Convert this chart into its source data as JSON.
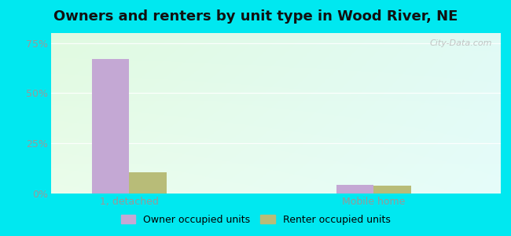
{
  "title": "Owners and renters by unit type in Wood River, NE",
  "categories": [
    "1, detached",
    "Mobile home"
  ],
  "owner_values": [
    67.0,
    4.5
  ],
  "renter_values": [
    10.5,
    4.0
  ],
  "owner_color": "#c4a8d4",
  "renter_color": "#b8bc78",
  "ylim": [
    0,
    80
  ],
  "yticks": [
    0,
    25,
    50,
    75
  ],
  "yticklabels": [
    "0%",
    "25%",
    "50%",
    "75%"
  ],
  "bar_width": 0.38,
  "group_positions": [
    1.0,
    3.5
  ],
  "xlim": [
    0.2,
    4.8
  ],
  "legend_owner": "Owner occupied units",
  "legend_renter": "Renter occupied units",
  "watermark": "City-Data.com",
  "title_fontsize": 13,
  "tick_fontsize": 9,
  "legend_fontsize": 9,
  "cyan_bg": "#00e8f0",
  "plot_bg_topleft": [
    0.88,
    0.98,
    0.88
  ],
  "plot_bg_topright": [
    0.88,
    0.98,
    0.96
  ],
  "plot_bg_botleft": [
    0.92,
    0.99,
    0.92
  ],
  "plot_bg_botright": [
    0.9,
    0.99,
    0.98
  ]
}
